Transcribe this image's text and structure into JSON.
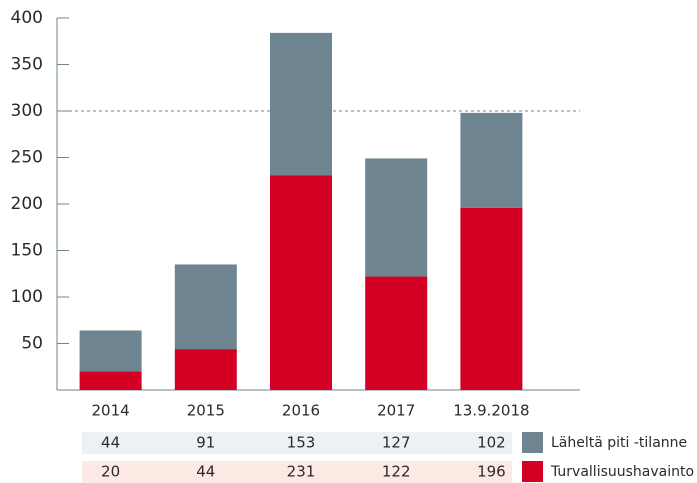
{
  "chart_data": {
    "type": "bar",
    "stacked": true,
    "categories": [
      "2014",
      "2015",
      "2016",
      "2017",
      "13.9.2018"
    ],
    "series": [
      {
        "name": "Läheltä piti -tilanne",
        "color": "#6e8591",
        "values": [
          44,
          91,
          153,
          127,
          102
        ]
      },
      {
        "name": "Turvallisuushavainto",
        "color": "#d40023",
        "values": [
          20,
          44,
          231,
          122,
          196
        ]
      }
    ],
    "ylim": [
      0,
      400
    ],
    "yticks": [
      50,
      100,
      150,
      200,
      250,
      300,
      350,
      400
    ],
    "reference_line": 300
  }
}
